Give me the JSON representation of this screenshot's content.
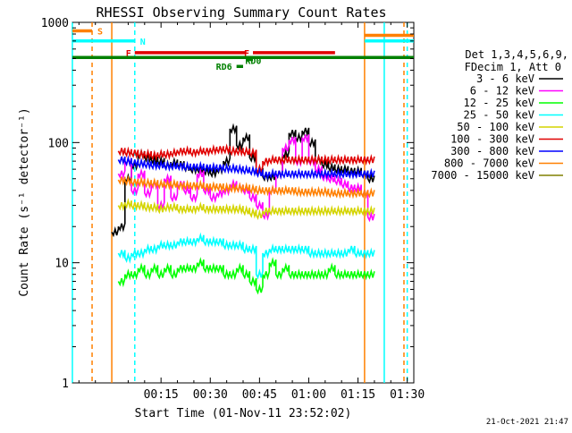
{
  "chart_data": {
    "type": "line",
    "title": "RHESSI Observing Summary Count Rates",
    "xlabel": "Start Time (01-Nov-11 23:52:02)",
    "ylabel": "Count Rate (s⁻¹ detector⁻¹)",
    "xscale": "linear",
    "yscale": "log",
    "xunit": "minutes since start",
    "xlim": [
      -12,
      92
    ],
    "ylim": [
      1,
      1000
    ],
    "grid": false,
    "legend_placement": "right",
    "x_ticks": [
      {
        "value": 15,
        "label": "00:15"
      },
      {
        "value": 30,
        "label": "00:30"
      },
      {
        "value": 45,
        "label": "00:45"
      },
      {
        "value": 60,
        "label": "01:00"
      },
      {
        "value": 75,
        "label": "01:15"
      },
      {
        "value": 90,
        "label": "01:30"
      }
    ],
    "y_ticks": [
      {
        "value": 1,
        "label": "1"
      },
      {
        "value": 10,
        "label": "10"
      },
      {
        "value": 100,
        "label": "100"
      },
      {
        "value": 1000,
        "label": "1000"
      }
    ],
    "legend_header": [
      "Det 1,3,4,5,6,9,",
      "FDecim 1, Att 0"
    ],
    "timestamp": "21-Oct-2021 21:47",
    "series": [
      {
        "name": "3 - 6 keV",
        "color": "#000000",
        "x": [
          0,
          2,
          4,
          6,
          8,
          10,
          12,
          14,
          16,
          18,
          20,
          22,
          24,
          26,
          28,
          30,
          32,
          34,
          36,
          38,
          40,
          42,
          44,
          46,
          48,
          50,
          52,
          54,
          56,
          58,
          60,
          62,
          64,
          66,
          68,
          70,
          72,
          74,
          76,
          78
        ],
        "y": [
          18,
          20,
          50,
          65,
          80,
          75,
          72,
          70,
          65,
          68,
          66,
          62,
          60,
          60,
          58,
          56,
          60,
          70,
          130,
          95,
          110,
          75,
          58,
          52,
          52,
          55,
          80,
          120,
          110,
          125,
          100,
          72,
          66,
          62,
          60,
          60,
          58,
          58,
          55,
          50
        ]
      },
      {
        "name": "6 - 12 keV",
        "color": "#ff00ff",
        "x": [
          2,
          4,
          6,
          8,
          10,
          12,
          14,
          16,
          18,
          20,
          22,
          24,
          26,
          28,
          30,
          32,
          34,
          36,
          38,
          40,
          42,
          44,
          46,
          48,
          50,
          52,
          54,
          56,
          58,
          60,
          62,
          64,
          66,
          68,
          70,
          72,
          74,
          76,
          78
        ],
        "y": [
          55,
          70,
          40,
          55,
          38,
          45,
          30,
          50,
          35,
          45,
          40,
          35,
          55,
          40,
          35,
          38,
          40,
          45,
          42,
          40,
          35,
          30,
          25,
          40,
          55,
          90,
          105,
          70,
          110,
          70,
          60,
          52,
          50,
          48,
          45,
          42,
          42,
          38,
          24
        ]
      },
      {
        "name": "12 - 25 keV",
        "color": "#00ff00",
        "x": [
          2,
          4,
          6,
          8,
          10,
          12,
          14,
          16,
          18,
          20,
          22,
          24,
          26,
          28,
          30,
          32,
          34,
          36,
          38,
          40,
          42,
          44,
          46,
          48,
          50,
          52,
          54,
          56,
          58,
          60,
          62,
          64,
          66,
          68,
          70,
          72,
          74,
          76,
          78
        ],
        "y": [
          7,
          8,
          8,
          9,
          8,
          9,
          8,
          9,
          8,
          9,
          9,
          9,
          10,
          9,
          9,
          9,
          8,
          8,
          9,
          8,
          7,
          6,
          8,
          10,
          8,
          9,
          8,
          8,
          8,
          8,
          8,
          8,
          9,
          8,
          8,
          8,
          8,
          8,
          8
        ]
      },
      {
        "name": "25 - 50 keV",
        "color": "#00ffff",
        "x": [
          2,
          4,
          6,
          8,
          10,
          12,
          14,
          16,
          18,
          20,
          22,
          24,
          26,
          28,
          30,
          32,
          34,
          36,
          38,
          40,
          42,
          44,
          46,
          48,
          50,
          52,
          54,
          56,
          58,
          60,
          62,
          64,
          66,
          68,
          70,
          72,
          74,
          76,
          78
        ],
        "y": [
          12,
          11,
          12,
          12,
          13,
          13,
          14,
          14,
          14,
          15,
          15,
          15,
          16,
          15,
          15,
          15,
          14,
          14,
          14,
          13,
          13,
          8,
          12,
          13,
          13,
          13,
          13,
          13,
          13,
          12,
          12,
          12,
          12,
          12,
          12,
          13,
          12,
          12,
          12
        ]
      },
      {
        "name": "50 - 100 keV",
        "color": "#d4d400",
        "x": [
          2,
          4,
          6,
          8,
          10,
          12,
          14,
          16,
          18,
          20,
          22,
          24,
          26,
          28,
          30,
          32,
          34,
          36,
          38,
          40,
          42,
          44,
          46,
          48,
          50,
          52,
          54,
          56,
          58,
          60,
          62,
          64,
          66,
          68,
          70,
          72,
          74,
          76,
          78
        ],
        "y": [
          30,
          31,
          30,
          30,
          29,
          29,
          28,
          29,
          29,
          28,
          28,
          28,
          29,
          28,
          28,
          28,
          28,
          28,
          28,
          27,
          26,
          25,
          27,
          27,
          27,
          27,
          27,
          27,
          27,
          27,
          27,
          27,
          27,
          27,
          27,
          27,
          27,
          27,
          27
        ]
      },
      {
        "name": "100 - 300 keV",
        "color": "#e00000",
        "x": [
          2,
          4,
          6,
          8,
          10,
          12,
          14,
          16,
          18,
          20,
          22,
          24,
          26,
          28,
          30,
          32,
          34,
          36,
          38,
          40,
          42,
          44,
          46,
          48,
          50,
          52,
          54,
          56,
          58,
          60,
          62,
          64,
          66,
          68,
          70,
          72,
          74,
          76,
          78
        ],
        "y": [
          85,
          83,
          82,
          80,
          80,
          78,
          80,
          80,
          82,
          85,
          85,
          83,
          85,
          85,
          87,
          88,
          88,
          85,
          85,
          84,
          82,
          60,
          70,
          72,
          72,
          72,
          72,
          72,
          72,
          72,
          72,
          72,
          72,
          72,
          72,
          72,
          72,
          72,
          72
        ]
      },
      {
        "name": "300 - 800 keV",
        "color": "#0000ff",
        "x": [
          2,
          4,
          6,
          8,
          10,
          12,
          14,
          16,
          18,
          20,
          22,
          24,
          26,
          28,
          30,
          32,
          34,
          36,
          38,
          40,
          42,
          44,
          46,
          48,
          50,
          52,
          54,
          56,
          58,
          60,
          62,
          64,
          66,
          68,
          70,
          72,
          74,
          76,
          78
        ],
        "y": [
          72,
          70,
          68,
          67,
          66,
          65,
          65,
          64,
          64,
          64,
          63,
          63,
          63,
          62,
          62,
          62,
          61,
          61,
          60,
          59,
          58,
          56,
          54,
          55,
          55,
          55,
          55,
          55,
          55,
          55,
          55,
          55,
          55,
          55,
          55,
          55,
          55,
          55,
          55
        ]
      },
      {
        "name": "800 - 7000 keV",
        "color": "#ff8000",
        "x": [
          2,
          4,
          6,
          8,
          10,
          12,
          14,
          16,
          18,
          20,
          22,
          24,
          26,
          28,
          30,
          32,
          34,
          36,
          38,
          40,
          42,
          44,
          46,
          48,
          50,
          52,
          54,
          56,
          58,
          60,
          62,
          64,
          66,
          68,
          70,
          72,
          74,
          76,
          78
        ],
        "y": [
          49,
          48,
          47,
          47,
          46,
          46,
          45,
          45,
          45,
          44,
          44,
          44,
          44,
          43,
          43,
          43,
          42,
          42,
          42,
          42,
          41,
          40,
          40,
          40,
          40,
          40,
          40,
          39,
          39,
          39,
          39,
          39,
          38,
          38,
          38,
          38,
          38,
          38,
          38
        ]
      },
      {
        "name": "7000 - 15000 keV",
        "color": "#808000",
        "x": [],
        "y": []
      }
    ],
    "annotations": [
      {
        "label": "S",
        "color": "#ff8000",
        "x": [
          -12,
          -6
        ],
        "y": 850
      },
      {
        "label": "N",
        "color": "#00ffff",
        "x": [
          -12,
          7
        ],
        "y": 700
      },
      {
        "label": "F",
        "color": "#e00000",
        "x": [
          7,
          41
        ],
        "y": 560
      },
      {
        "label": "F",
        "color": "#e00000",
        "x": [
          43,
          68
        ],
        "y": 560
      },
      {
        "label": "RD0",
        "color": "#008000",
        "x": [
          41,
          43
        ],
        "y": 490
      },
      {
        "label": "RD6",
        "color": "#008000",
        "x": [
          38,
          40
        ],
        "y": 430
      },
      {
        "label": "",
        "color": "#008000",
        "x": [
          -12,
          92
        ],
        "y": 510
      },
      {
        "label": "",
        "color": "#ff8000",
        "x": [
          77,
          92
        ],
        "y": 780
      },
      {
        "label": "",
        "color": "#00ffff",
        "x": [
          77,
          92
        ],
        "y": 700
      }
    ],
    "vertical_markers": [
      {
        "x": -12,
        "color": "#00ffff",
        "style": "solid"
      },
      {
        "x": -6,
        "color": "#ff8000",
        "style": "dashed"
      },
      {
        "x": 0,
        "color": "#ff8000",
        "style": "solid"
      },
      {
        "x": 7,
        "color": "#00ffff",
        "style": "dashed"
      },
      {
        "x": 77,
        "color": "#ff8000",
        "style": "solid"
      },
      {
        "x": 83,
        "color": "#00ffff",
        "style": "solid"
      },
      {
        "x": 89,
        "color": "#ff8000",
        "style": "dashed"
      },
      {
        "x": 90,
        "color": "#00ffff",
        "style": "dashed"
      }
    ]
  }
}
